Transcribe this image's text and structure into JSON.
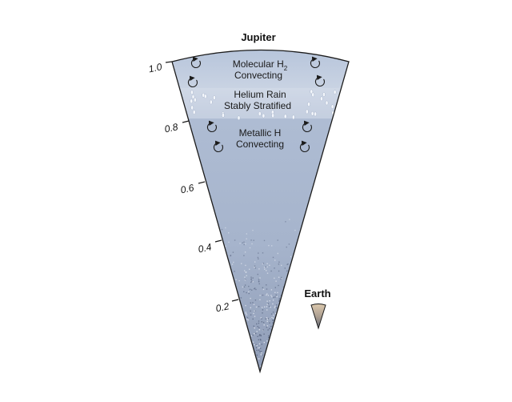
{
  "diagram": {
    "title": "Jupiter",
    "layers": [
      {
        "name": "molecular",
        "line1": "Molecular H",
        "subscript": "2",
        "line2": "Convecting"
      },
      {
        "name": "helium-rain",
        "line1": "Helium Rain",
        "line2": "Stably Stratified"
      },
      {
        "name": "metallic",
        "line1": "Metallic H",
        "line2": "Convecting"
      }
    ],
    "axis": {
      "ticks": [
        "1.0",
        "0.8",
        "0.6",
        "0.4",
        "0.2"
      ]
    },
    "inset": {
      "label": "Earth"
    },
    "colors": {
      "envelope": "#a9b8d0",
      "envelope_light": "#c6d1e2",
      "rain_band": "#d7dfec",
      "outline": "#1b1b1b",
      "speckle": "#5d6a86",
      "earth_top": "#d9c7ac",
      "earth_bottom": "#6d7280"
    }
  }
}
